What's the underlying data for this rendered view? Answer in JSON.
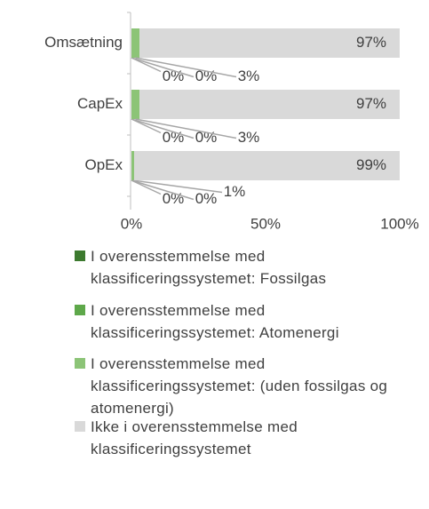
{
  "chart_data": {
    "type": "stacked_barh",
    "categories": [
      "Omsætning",
      "CapEx",
      "OpEx"
    ],
    "series": [
      {
        "name": "I overensstemmelse med klassificeringssystemet: Fossilgas",
        "color": "#3d7a2f",
        "values": [
          0,
          0,
          0
        ],
        "value_labels": [
          "0%",
          "0%",
          "0%"
        ]
      },
      {
        "name": "I overensstemmelse med klassificeringssystemet: Atomenergi",
        "color": "#5ea84a",
        "values": [
          0,
          0,
          0
        ],
        "value_labels": [
          "0%",
          "0%",
          "0%"
        ]
      },
      {
        "name": "I overensstemmelse med klassificeringssystemet: (uden fossilgas og atomenergi)",
        "color": "#8cc477",
        "values": [
          3,
          3,
          1
        ],
        "value_labels": [
          "3%",
          "3%",
          "1%"
        ]
      },
      {
        "name": "Ikke i overensstemmelse med klassificeringssystemet",
        "color": "#d9d9d9",
        "values": [
          97,
          97,
          99
        ],
        "value_labels": [
          "97%",
          "97%",
          "99%"
        ]
      }
    ],
    "xlim": [
      0,
      100
    ],
    "xticks": [
      {
        "value": 0,
        "label": "0%"
      },
      {
        "value": 50,
        "label": "50%"
      },
      {
        "value": 100,
        "label": "100%"
      }
    ],
    "grid": false
  }
}
